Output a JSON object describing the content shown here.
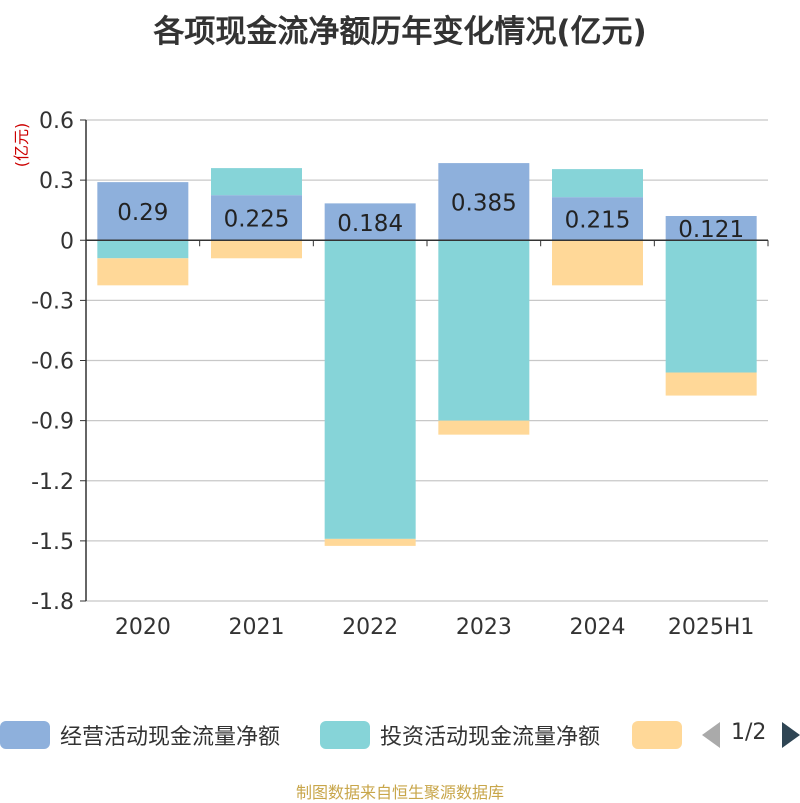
{
  "title": "各项现金流净额历年变化情况(亿元)",
  "unit_label": "(亿元)",
  "footer": "制图数据来自恒生聚源数据库",
  "legend": {
    "items": [
      {
        "label": "经营活动现金流量净额",
        "color": "#8eb0dc"
      },
      {
        "label": "投资活动现金流量净额",
        "color": "#86d4d8"
      },
      {
        "label": "",
        "color": "#ffd898"
      }
    ],
    "page_text": "1/2"
  },
  "chart_data": {
    "type": "bar",
    "stacked": true,
    "categories": [
      "2020",
      "2021",
      "2022",
      "2023",
      "2024",
      "2025H1"
    ],
    "ylim": [
      -1.8,
      0.6
    ],
    "yticks": [
      "0.6",
      "0.3",
      "0",
      "-0.3",
      "-0.6",
      "-0.9",
      "-1.2",
      "-1.5",
      "-1.8"
    ],
    "grid": true,
    "legend_position": "bottom",
    "series": [
      {
        "name": "经营活动现金流量净额",
        "color": "#8eb0dc",
        "values": [
          0.29,
          0.225,
          0.184,
          0.385,
          0.215,
          0.121
        ],
        "labels": [
          "0.29",
          "0.225",
          "0.184",
          "0.385",
          "0.215",
          "0.121"
        ]
      },
      {
        "name": "投资活动现金流量净额",
        "color": "#86d4d8",
        "values": [
          -0.09,
          0.135,
          -1.49,
          -0.9,
          0.14,
          -0.66
        ]
      },
      {
        "color": "#ffd898",
        "values": [
          -0.135,
          -0.09,
          -0.035,
          -0.07,
          -0.225,
          -0.115
        ]
      }
    ]
  }
}
